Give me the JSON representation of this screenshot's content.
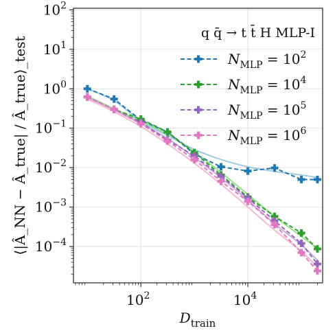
{
  "chart_data": {
    "type": "line",
    "legend_title": "q q̄ → t t̄ H MLP-I",
    "xlabel_main": "D",
    "xlabel_sub": "train",
    "ylabel": "⟨|Â_NN − Â_true| / Â_true⟩_test",
    "xscale": "log",
    "yscale": "log",
    "xlim": [
      5.5,
      250000
    ],
    "ylim": [
      1.2e-05,
      110
    ],
    "grid": true,
    "legend_position": "top-right",
    "x_ticks": [
      {
        "base": "10",
        "exp": "2",
        "value": 100
      },
      {
        "base": "10",
        "exp": "4",
        "value": 10000
      }
    ],
    "y_ticks": [
      {
        "base": "10",
        "exp": "2",
        "value": 100
      },
      {
        "base": "10",
        "exp": "1",
        "value": 10
      },
      {
        "base": "10",
        "exp": "0",
        "value": 1
      },
      {
        "base": "10",
        "exp": "−1",
        "value": 0.1
      },
      {
        "base": "10",
        "exp": "−2",
        "value": 0.01
      },
      {
        "base": "10",
        "exp": "−3",
        "value": 0.001
      },
      {
        "base": "10",
        "exp": "−4",
        "value": 0.0001
      }
    ],
    "x": [
      10,
      31.6,
      100,
      316,
      1000,
      3160,
      10000,
      31600,
      100000,
      200000
    ],
    "series": [
      {
        "name": "N_MLP = 10^2",
        "legend_exp": "2",
        "color": "#1f77b4",
        "fit_color": "#9ecae1",
        "values": [
          1.0,
          0.55,
          0.16,
          0.08,
          0.022,
          0.0105,
          0.0082,
          0.0098,
          0.005,
          0.005
        ],
        "fit": [
          1.0,
          0.5,
          0.15,
          0.065,
          0.029,
          0.016,
          0.0105,
          0.008,
          0.0065,
          0.0056
        ]
      },
      {
        "name": "N_MLP = 10^4",
        "legend_exp": "4",
        "color": "#2ca02c",
        "fit_color": "#98df8a",
        "values": [
          0.62,
          0.3,
          0.17,
          0.08,
          0.024,
          0.0065,
          0.0018,
          0.00058,
          0.00022,
          8.7e-05
        ],
        "fit": [
          0.65,
          0.31,
          0.15,
          0.07,
          0.025,
          0.0075,
          0.0021,
          0.00058,
          0.00018,
          9e-05
        ]
      },
      {
        "name": "N_MLP = 10^5",
        "legend_exp": "5",
        "color": "#9467bd",
        "fit_color": "#c5b0d5",
        "values": [
          0.62,
          0.3,
          0.14,
          0.05,
          0.02,
          0.006,
          0.0017,
          0.00045,
          0.00012,
          3.6e-05
        ],
        "fit": [
          0.6,
          0.29,
          0.13,
          0.055,
          0.018,
          0.0055,
          0.0015,
          0.00038,
          0.00011,
          4.5e-05
        ]
      },
      {
        "name": "N_MLP = 10^6",
        "legend_exp": "6",
        "color": "#e377c2",
        "fit_color": "#f7b6d2",
        "values": [
          0.62,
          0.3,
          0.13,
          0.047,
          0.016,
          0.0045,
          0.0014,
          0.00036,
          7e-05,
          2.4e-05
        ],
        "fit": [
          0.55,
          0.26,
          0.11,
          0.04,
          0.013,
          0.0038,
          0.001,
          0.00026,
          7.5e-05,
          3e-05
        ]
      }
    ]
  }
}
